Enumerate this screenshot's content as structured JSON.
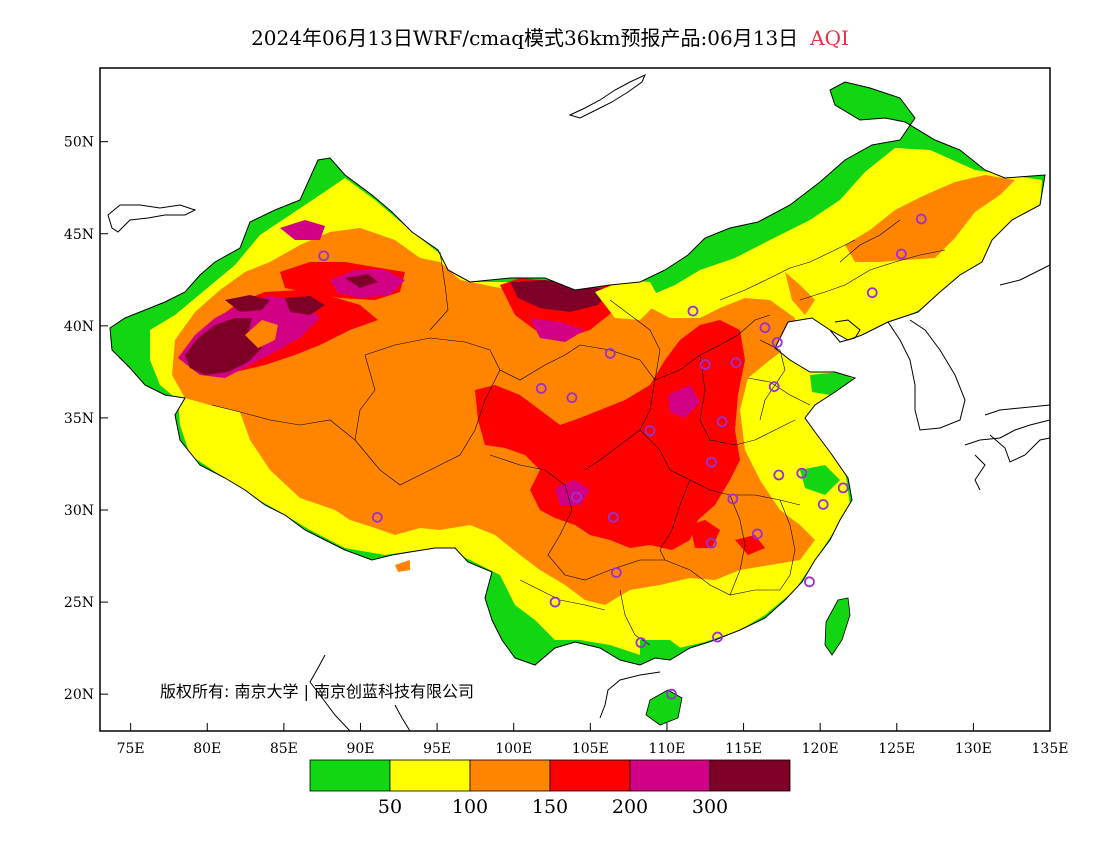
{
  "title": {
    "main": "2024年06月13日WRF/cmaq模式36km预报产品:06月13日",
    "variable": "AQI"
  },
  "map": {
    "lon_range": [
      73,
      135
    ],
    "lat_range": [
      18,
      54
    ],
    "x_ticks": [
      "75E",
      "80E",
      "85E",
      "90E",
      "95E",
      "100E",
      "105E",
      "110E",
      "115E",
      "120E",
      "125E",
      "130E",
      "135E"
    ],
    "x_tick_values": [
      75,
      80,
      85,
      90,
      95,
      100,
      105,
      110,
      115,
      120,
      125,
      130,
      135
    ],
    "y_ticks": [
      "20N",
      "25N",
      "30N",
      "35N",
      "40N",
      "45N",
      "50N"
    ],
    "y_tick_values": [
      20,
      25,
      30,
      35,
      40,
      45,
      50
    ],
    "copyright": "版权所有: 南京大学 | 南京创蓝科技有限公司",
    "station_marker_color": "#9b2fd6",
    "stations": [
      [
        87.6,
        43.8
      ],
      [
        126.6,
        45.8
      ],
      [
        125.3,
        43.9
      ],
      [
        123.4,
        41.8
      ],
      [
        111.7,
        40.8
      ],
      [
        116.4,
        39.9
      ],
      [
        117.2,
        39.1
      ],
      [
        114.5,
        38.0
      ],
      [
        112.5,
        37.9
      ],
      [
        106.3,
        38.5
      ],
      [
        103.8,
        36.1
      ],
      [
        101.8,
        36.6
      ],
      [
        117.0,
        36.7
      ],
      [
        113.6,
        34.8
      ],
      [
        108.9,
        34.3
      ],
      [
        118.8,
        32.0
      ],
      [
        117.3,
        31.9
      ],
      [
        121.5,
        31.2
      ],
      [
        120.2,
        30.3
      ],
      [
        114.3,
        30.6
      ],
      [
        104.1,
        30.7
      ],
      [
        106.5,
        29.6
      ],
      [
        112.9,
        28.2
      ],
      [
        115.9,
        28.7
      ],
      [
        106.7,
        26.6
      ],
      [
        102.7,
        25.0
      ],
      [
        119.3,
        26.1
      ],
      [
        113.3,
        23.1
      ],
      [
        108.3,
        22.8
      ],
      [
        110.3,
        20.0
      ],
      [
        91.1,
        29.6
      ],
      [
        112.9,
        32.6
      ]
    ]
  },
  "legend": {
    "colors": [
      "#11d611",
      "#ffff00",
      "#ff8400",
      "#ff0000",
      "#d20084",
      "#7f0026"
    ],
    "labels": [
      "50",
      "100",
      "150",
      "200",
      "300"
    ],
    "categories": [
      {
        "range": "0-50",
        "color": "#11d611"
      },
      {
        "range": "50-100",
        "color": "#ffff00"
      },
      {
        "range": "100-150",
        "color": "#ff8400"
      },
      {
        "range": "150-200",
        "color": "#ff0000"
      },
      {
        "range": "200-300",
        "color": "#d20084"
      },
      {
        "range": ">300",
        "color": "#7f0026"
      }
    ]
  }
}
